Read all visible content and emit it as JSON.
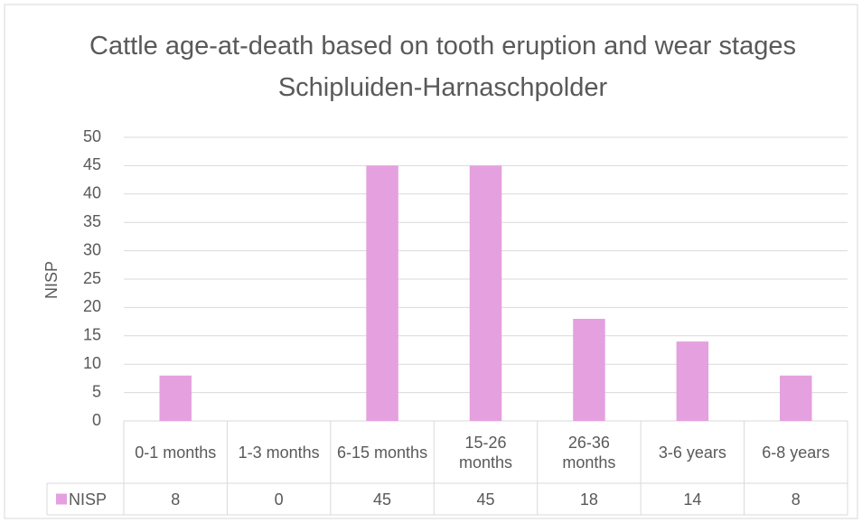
{
  "chart_data": {
    "type": "bar",
    "title": "Cattle age-at-death based on tooth eruption and wear stages Schipluiden-Harnaschpolder",
    "y_label": "NISP",
    "categories": [
      "0-1 months",
      "1-3 months",
      "6-15 months",
      "15-26 months",
      "26-36 months",
      "3-6 years",
      "6-8 years"
    ],
    "series": [
      {
        "name": "NISP",
        "color": "#e4a0df",
        "values": [
          8,
          0,
          45,
          45,
          18,
          14,
          8
        ]
      }
    ],
    "ylim": [
      0,
      50
    ],
    "yticks": [
      0,
      5,
      10,
      15,
      20,
      25,
      30,
      35,
      40,
      45,
      50
    ],
    "grid": true,
    "legend": "data-table"
  }
}
